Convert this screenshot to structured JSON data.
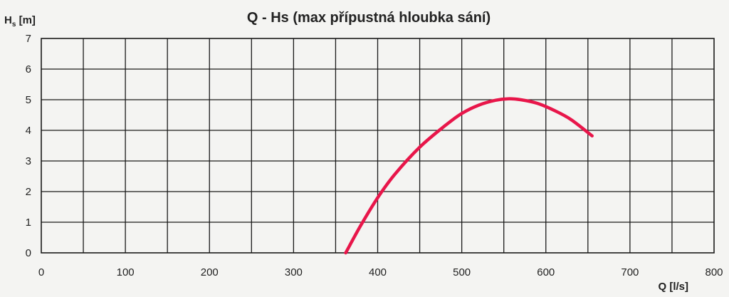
{
  "chart_data": {
    "type": "line",
    "title": "Q - Hs (max přípustná hloubka sání)",
    "ylabel": {
      "main": "H",
      "sub": "s",
      "unit": " [m]"
    },
    "xlabel": "Q [l/s]",
    "xlim": [
      0,
      800
    ],
    "ylim": [
      0,
      7
    ],
    "x_tick_labels": [
      "0",
      "100",
      "200",
      "300",
      "400",
      "500",
      "600",
      "700",
      "800"
    ],
    "y_tick_labels": [
      "0",
      "1",
      "2",
      "3",
      "4",
      "5",
      "6",
      "7"
    ],
    "x_grid_step": 50,
    "y_grid_step": 1,
    "grid": true,
    "series": [
      {
        "color": "#e8164a",
        "x": [
          362,
          380,
          400,
          420,
          450,
          480,
          500,
          520,
          540,
          555,
          570,
          590,
          610,
          630,
          655
        ],
        "y": [
          0.0,
          0.9,
          1.8,
          2.55,
          3.45,
          4.15,
          4.55,
          4.82,
          4.98,
          5.03,
          5.0,
          4.88,
          4.65,
          4.35,
          3.82
        ]
      }
    ]
  }
}
